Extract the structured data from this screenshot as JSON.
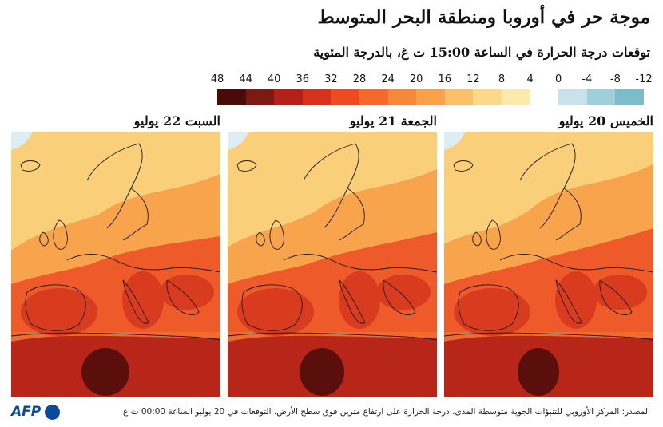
{
  "title": "موجة حر في أوروبا ومنطقة البحر المتوسط",
  "subtitle": "توقعات درجة الحرارة في الساعة 15:00 ت غ، بالدرجة المئوية",
  "scale": {
    "labels": [
      "48",
      "44",
      "40",
      "36",
      "32",
      "28",
      "24",
      "20",
      "16",
      "12",
      "8",
      "4",
      "0",
      "-4",
      "-8",
      "-12"
    ],
    "colors": [
      "#4a0a0a",
      "#7b1a10",
      "#b4201a",
      "#d6331c",
      "#ef4b22",
      "#f36a2b",
      "#f5893a",
      "#f7a24a",
      "#fac16a",
      "#fcd889",
      "#fceaac",
      "#ffffff",
      "#c9e2ea",
      "#9fcfdb",
      "#7cbdcc"
    ]
  },
  "panels": [
    {
      "id": "thu",
      "label": "الخميس 20 يوليو"
    },
    {
      "id": "fri",
      "label": "الجمعة 21 يوليو"
    },
    {
      "id": "sat",
      "label": "السبت 22 يوليو"
    }
  ],
  "map_colors": {
    "north": "#f9cf7a",
    "mid": "#f7a44c",
    "south": "#ef5a2a",
    "hot": "#d93b1e",
    "africa": "#b8261a",
    "extreme": "#5a0f0c",
    "sea": "#f36b2c",
    "coast": "#1a1a1a",
    "ice": "#dceef3"
  },
  "source": "المصدر: المركز الأوروبي للتنبؤات الجوية متوسطة المدى، درجة الحرارة على ارتفاع مترين فوق سطح الأرض، التوقعات في 20 يوليو الساعة 00:00 ت غ",
  "logo": {
    "text": "AFP"
  }
}
